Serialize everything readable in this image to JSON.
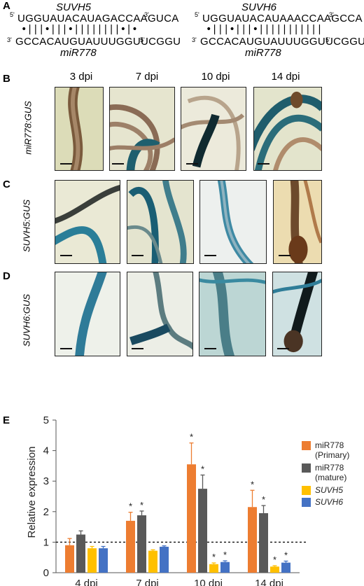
{
  "panels": {
    "A": "A",
    "B": "B",
    "C": "C",
    "D": "D",
    "E": "E"
  },
  "panelA": {
    "left": {
      "gene": "SUVH5",
      "top_seq": "UGGUAUACAUAGACCAAGUCA",
      "bonds": "•|||•|||•||||||||•|•",
      "bottom_seq": "GCCACAUGUAUUUGGUUCGGU",
      "mirna": "miR778",
      "five": "5'",
      "three": "3'"
    },
    "right": {
      "gene": "SUVH6",
      "top_seq": "UGGUAUACAUAAACCAAGCCA",
      "bonds": "•|||•|||•|||||||||||",
      "bottom_seq": "GCCACAUGUAUUUGGUUCGGU",
      "mirna": "miR778",
      "five": "5'",
      "three": "3'"
    }
  },
  "timepoints": [
    "3 dpi",
    "7 dpi",
    "10 dpi",
    "14 dpi"
  ],
  "row_labels": {
    "B": "miR778:GUS",
    "C": "SUVH5:GUS",
    "D": "SUVH6:GUS"
  },
  "chart_data": {
    "type": "bar",
    "categories": [
      "4 dpi",
      "7 dpi",
      "10 dpi",
      "14 dpi"
    ],
    "ylabel": "Relative expression",
    "ylim": [
      0,
      5
    ],
    "yticks": [
      0,
      1,
      2,
      3,
      4,
      5
    ],
    "reference_line": 1,
    "series": [
      {
        "name": "miR778 (Primary)",
        "name_lines": [
          "miR778",
          "(Primary)"
        ],
        "italic": false,
        "color": "#ED7D31",
        "values": [
          0.9,
          1.7,
          3.55,
          2.15
        ],
        "errors": [
          0.22,
          0.28,
          0.7,
          0.55
        ],
        "significant": [
          false,
          true,
          true,
          true
        ]
      },
      {
        "name": "miR778 (mature)",
        "name_lines": [
          "miR778",
          "(mature)"
        ],
        "italic": false,
        "color": "#595959",
        "values": [
          1.25,
          1.88,
          2.75,
          1.95
        ],
        "errors": [
          0.12,
          0.14,
          0.45,
          0.25
        ],
        "significant": [
          false,
          true,
          true,
          true
        ]
      },
      {
        "name": "SUVH5",
        "name_lines": [
          "SUVH5"
        ],
        "italic": true,
        "color": "#FFC000",
        "values": [
          0.8,
          0.72,
          0.28,
          0.2
        ],
        "errors": [
          0.06,
          0.03,
          0.04,
          0.03
        ],
        "significant": [
          false,
          false,
          true,
          true
        ]
      },
      {
        "name": "SUVH6",
        "name_lines": [
          "SUVH6"
        ],
        "italic": true,
        "color": "#4472C4",
        "values": [
          0.8,
          0.85,
          0.35,
          0.33
        ],
        "errors": [
          0.06,
          0.03,
          0.04,
          0.05
        ],
        "significant": [
          false,
          false,
          true,
          true
        ]
      }
    ],
    "significance_marker": "*"
  },
  "colors": {
    "tile_bg_light": "#e8e6c6",
    "tile_bg_blue": "#c9dde6",
    "gus_blue": "#1f5f7a",
    "root_brown": "#6b4a2f"
  }
}
